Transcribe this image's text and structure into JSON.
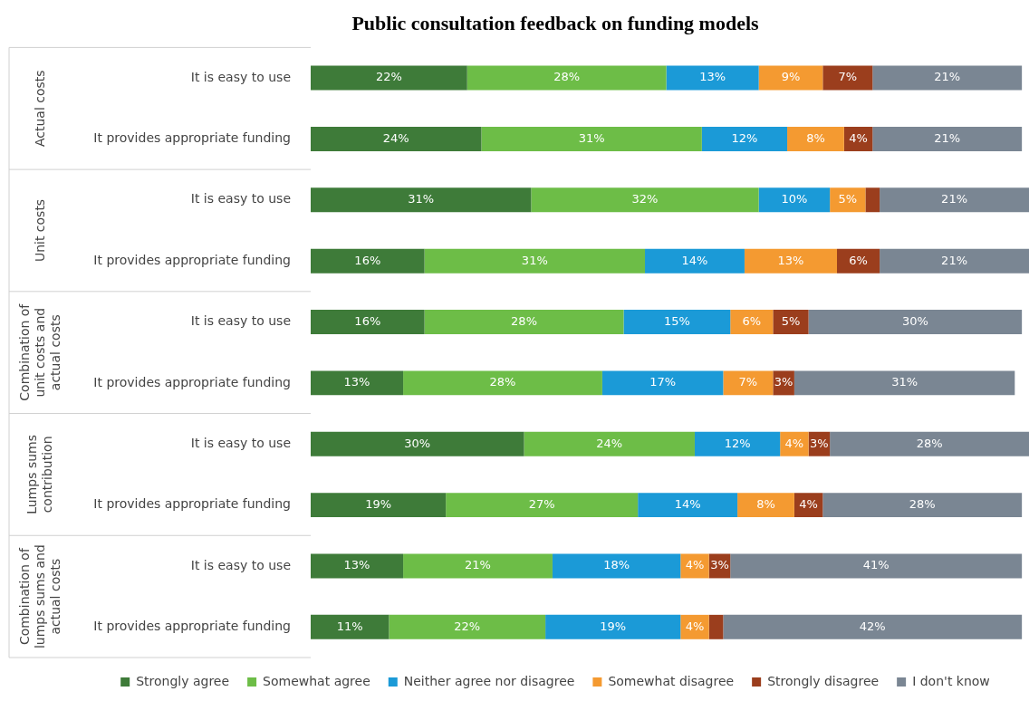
{
  "chart_data": {
    "type": "bar",
    "orientation": "horizontal",
    "stacked": true,
    "title": "Public consultation feedback on funding models",
    "categories": [
      "It is easy to use",
      "It provides appropriate funding",
      "It is easy to use",
      "It provides appropriate funding",
      "It is easy to use",
      "It provides appropriate funding",
      "It is easy to use",
      "It provides appropriate funding",
      "It is easy to use",
      "It provides appropriate funding"
    ],
    "annotations": [
      "Actual costs",
      "Unit costs",
      "Combination of unit costs and actual costs",
      "Lumps sums contribution",
      "Combination of lumps sums and actual costs"
    ],
    "series": [
      {
        "name": "Strongly agree",
        "color": "#3e7b39",
        "values": [
          22,
          24,
          31,
          16,
          16,
          13,
          30,
          19,
          13,
          11
        ],
        "value_labels": [
          "22%",
          "24%",
          "31%",
          "16%",
          "16%",
          "13%",
          "30%",
          "19%",
          "13%",
          "11%"
        ]
      },
      {
        "name": "Somewhat agree",
        "color": "#6dbd47",
        "values": [
          28,
          31,
          32,
          31,
          28,
          28,
          24,
          27,
          21,
          22
        ],
        "value_labels": [
          "28%",
          "31%",
          "32%",
          "31%",
          "28%",
          "28%",
          "24%",
          "27%",
          "21%",
          "22%"
        ]
      },
      {
        "name": "Neither agree nor disagree",
        "color": "#1b9ad7",
        "values": [
          13,
          12,
          10,
          14,
          15,
          17,
          12,
          14,
          18,
          19
        ],
        "value_labels": [
          "13%",
          "12%",
          "10%",
          "14%",
          "15%",
          "17%",
          "12%",
          "14%",
          "18%",
          "19%"
        ]
      },
      {
        "name": "Somewhat disagree",
        "color": "#f49a31",
        "values": [
          9,
          8,
          5,
          13,
          6,
          7,
          4,
          8,
          4,
          4
        ],
        "value_labels": [
          "9%",
          "8%",
          "5%",
          "13%",
          "6%",
          "7%",
          "4%",
          "8%",
          "4%",
          "4%"
        ]
      },
      {
        "name": "Strongly disagree",
        "color": "#9b3e1d",
        "values": [
          7,
          4,
          2,
          6,
          5,
          3,
          3,
          4,
          3,
          2
        ],
        "value_labels": [
          "7%",
          "4%",
          null,
          "6%",
          "5%",
          "3%",
          "3%",
          "4%",
          "3%",
          null
        ]
      },
      {
        "name": "I don't know",
        "color": "#7a8693",
        "values": [
          21,
          21,
          21,
          21,
          30,
          31,
          28,
          28,
          41,
          42
        ],
        "value_labels": [
          "21%",
          "21%",
          "21%",
          "21%",
          "30%",
          "31%",
          "28%",
          "28%",
          "41%",
          "42%"
        ]
      }
    ],
    "legend": "bottom"
  }
}
